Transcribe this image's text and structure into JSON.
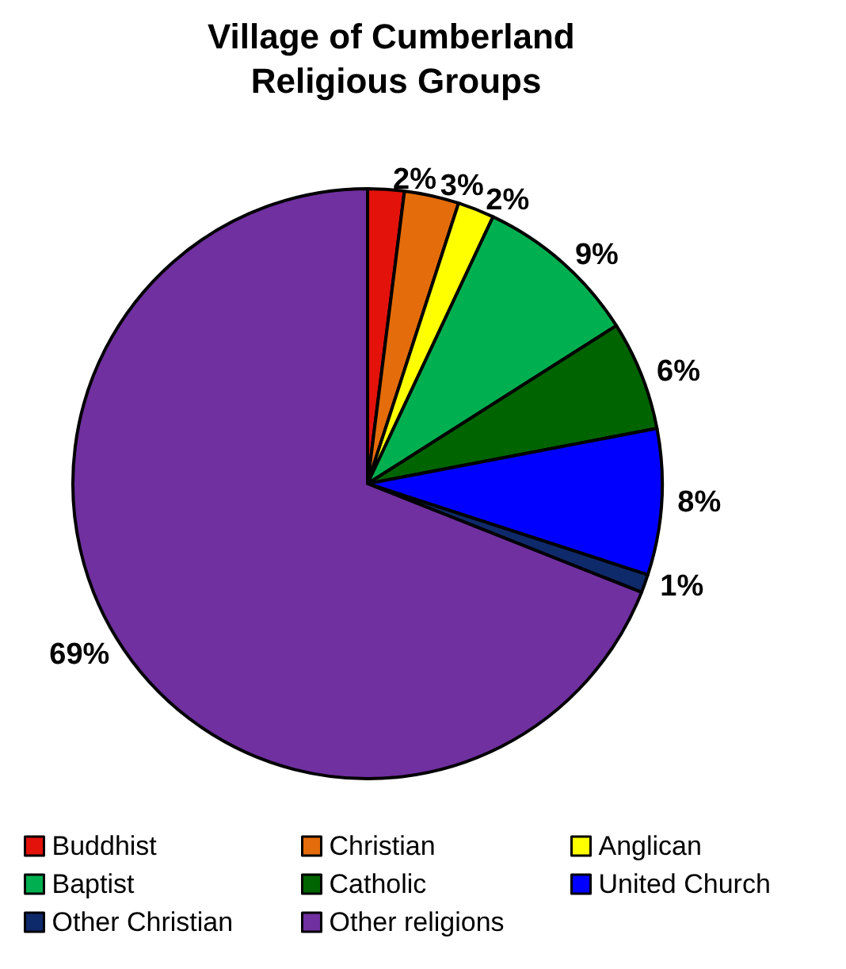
{
  "chart_data": {
    "type": "pie",
    "title": "Village of Cumberland Religious Groups",
    "categories": [
      "Buddhist",
      "Christian",
      "Anglican",
      "Baptist",
      "Catholic",
      "United Church",
      "Other Christian",
      "Other religions"
    ],
    "values": [
      2,
      3,
      2,
      9,
      6,
      8,
      1,
      69
    ],
    "colors": [
      "#e3120b",
      "#e46c0a",
      "#ffff00",
      "#00b050",
      "#006400",
      "#0000ff",
      "#0f2a6b",
      "#7030a0"
    ],
    "value_labels": [
      "2%",
      "3%",
      "2%",
      "9%",
      "6%",
      "8%",
      "1%",
      "69%"
    ],
    "legend": "bottom"
  }
}
